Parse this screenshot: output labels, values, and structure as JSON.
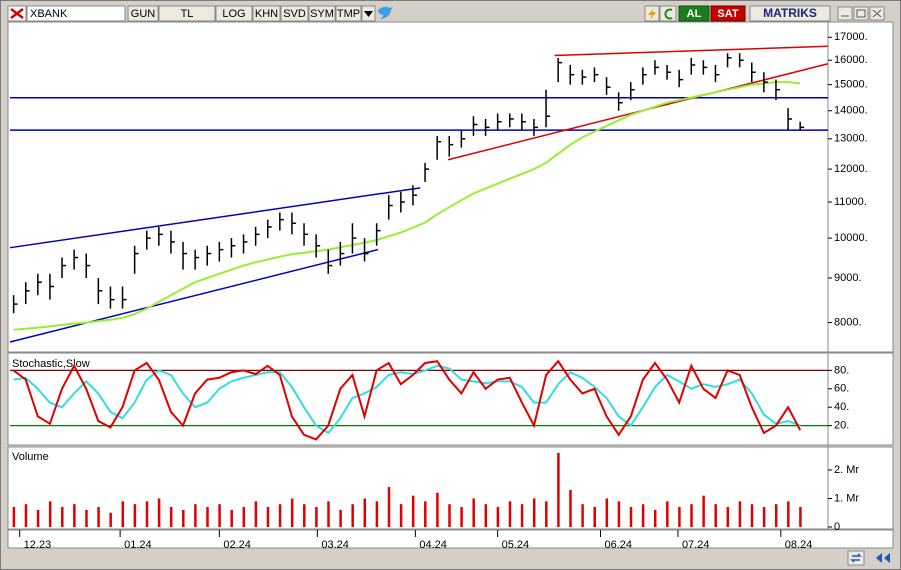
{
  "toolbar": {
    "symbol": "XBANK",
    "buttons": [
      "GUN",
      "TL",
      "LOG",
      "KHN",
      "SVD",
      "SYM",
      "TMP"
    ],
    "buy": "AL",
    "sell": "SAT",
    "brand": "MATRIKS"
  },
  "chart_data": [
    {
      "type": "ohlc",
      "color": "#000000",
      "log_scale": true,
      "x": [
        0,
        1,
        2,
        3,
        4,
        5,
        6,
        7,
        8,
        9,
        10,
        11,
        12,
        13,
        14,
        15,
        16,
        17,
        18,
        19,
        20,
        21,
        22,
        23,
        24,
        25,
        26,
        27,
        28,
        29,
        30,
        31,
        32,
        33,
        34,
        35,
        36,
        37,
        38,
        39,
        40,
        41,
        42,
        43,
        44,
        45,
        46,
        47,
        48,
        49,
        50,
        51,
        52,
        53,
        54,
        55,
        56,
        57,
        58,
        59,
        60,
        61,
        62,
        63,
        64,
        65
      ],
      "high": [
        8600,
        8900,
        9100,
        9100,
        9500,
        9700,
        9600,
        9000,
        8800,
        8800,
        9800,
        10200,
        10300,
        10200,
        9900,
        9700,
        9800,
        9900,
        10000,
        10100,
        10300,
        10500,
        10700,
        10700,
        10400,
        10100,
        9700,
        9900,
        10400,
        10000,
        10400,
        11200,
        11300,
        11500,
        12200,
        13100,
        13100,
        13300,
        13800,
        13700,
        13900,
        13900,
        13900,
        13700,
        14800,
        16100,
        15800,
        15600,
        15700,
        15300,
        14700,
        15100,
        15700,
        16000,
        15800,
        15600,
        16100,
        16000,
        15800,
        16300,
        16300,
        15900,
        15500,
        15200,
        14100,
        13600
      ],
      "low": [
        8200,
        8400,
        8600,
        8500,
        9000,
        9200,
        9000,
        8400,
        8300,
        8300,
        9100,
        9700,
        9800,
        9600,
        9200,
        9200,
        9300,
        9400,
        9500,
        9600,
        9800,
        10000,
        10200,
        10100,
        9800,
        9500,
        9100,
        9300,
        9600,
        9400,
        9800,
        10500,
        10700,
        10900,
        11600,
        12300,
        12400,
        12700,
        13100,
        13100,
        13300,
        13400,
        13300,
        13100,
        13400,
        15100,
        15000,
        15000,
        15100,
        14600,
        14000,
        14400,
        15000,
        15400,
        15200,
        14900,
        15400,
        15400,
        15100,
        15700,
        15700,
        15100,
        14700,
        14400,
        13300,
        13300
      ],
      "close": [
        8400,
        8700,
        8900,
        8800,
        9300,
        9500,
        9300,
        8700,
        8500,
        8500,
        9600,
        10000,
        10100,
        9900,
        9600,
        9500,
        9600,
        9700,
        9800,
        9900,
        10100,
        10300,
        10500,
        10400,
        10100,
        9800,
        9300,
        9600,
        10000,
        9600,
        10200,
        10900,
        11000,
        11200,
        12000,
        12900,
        12800,
        13000,
        13500,
        13400,
        13600,
        13700,
        13600,
        13400,
        13800,
        15900,
        15400,
        15300,
        15400,
        14900,
        14300,
        14800,
        15400,
        15700,
        15500,
        15200,
        15800,
        15700,
        15400,
        16100,
        16000,
        15500,
        15100,
        14800,
        13700,
        13400
      ],
      "ma": {
        "color": "#99ee33",
        "values": [
          7850,
          7870,
          7890,
          7920,
          7950,
          7980,
          8000,
          8030,
          8060,
          8100,
          8180,
          8300,
          8450,
          8600,
          8750,
          8900,
          9000,
          9100,
          9200,
          9300,
          9380,
          9450,
          9520,
          9580,
          9620,
          9660,
          9700,
          9760,
          9820,
          9880,
          9950,
          10050,
          10150,
          10280,
          10420,
          10650,
          10850,
          11050,
          11250,
          11400,
          11550,
          11700,
          11850,
          12000,
          12200,
          12500,
          12800,
          13050,
          13250,
          13450,
          13650,
          13850,
          14000,
          14150,
          14300,
          14400,
          14500,
          14600,
          14700,
          14800,
          14900,
          15000,
          15050,
          15100,
          15100,
          15050
        ]
      },
      "lines": [
        {
          "x": [
            -0.3,
            33.6
          ],
          "y": [
            9750,
            11420
          ],
          "color": "#0000c0"
        },
        {
          "x": [
            -0.3,
            30.1
          ],
          "y": [
            7600,
            9700
          ],
          "color": "#0000c0"
        },
        {
          "x": [
            -0.3,
            67.3
          ],
          "y": [
            14490,
            14490
          ],
          "color": "#0000c0"
        },
        {
          "x": [
            -0.3,
            67.3
          ],
          "y": [
            13300,
            13300
          ],
          "color": "#0000c0"
        },
        {
          "x": [
            35.9,
            67.3
          ],
          "y": [
            12300,
            15850
          ],
          "color": "#e00000"
        },
        {
          "x": [
            44.7,
            67.3
          ],
          "y": [
            16200,
            16600
          ],
          "color": "#e00000"
        }
      ],
      "xlim": [
        -0.3,
        67.3
      ],
      "xticks": [
        {
          "value": 0.5,
          "label": "12.23"
        },
        {
          "value": 8.8,
          "label": "01.24"
        },
        {
          "value": 17.0,
          "label": "02.24"
        },
        {
          "value": 25.1,
          "label": "03.24"
        },
        {
          "value": 33.2,
          "label": "04.24"
        },
        {
          "value": 40.0,
          "label": "05.24"
        },
        {
          "value": 48.5,
          "label": "06.24"
        },
        {
          "value": 54.9,
          "label": "07.24"
        },
        {
          "value": 63.4,
          "label": "08.24"
        }
      ],
      "ylim": [
        7480,
        17700
      ],
      "yticks": [
        {
          "value": 8000,
          "label": "8000."
        },
        {
          "value": 9000,
          "label": "9000."
        },
        {
          "value": 10000,
          "label": "10000."
        },
        {
          "value": 11000,
          "label": "11000."
        },
        {
          "value": 12000,
          "label": "12000."
        },
        {
          "value": 13000,
          "label": "13000."
        },
        {
          "value": 14000,
          "label": "14000."
        },
        {
          "value": 15000,
          "label": "15000."
        },
        {
          "value": 16000,
          "label": "16000."
        },
        {
          "value": 17000,
          "label": "17000."
        }
      ]
    },
    {
      "type": "line",
      "title": "Stochastic,Slow",
      "series": [
        {
          "color": "#e00000",
          "values": [
            80,
            70,
            30,
            22,
            60,
            85,
            60,
            25,
            18,
            40,
            80,
            88,
            70,
            35,
            20,
            55,
            70,
            72,
            78,
            80,
            76,
            85,
            75,
            30,
            10,
            5,
            20,
            60,
            75,
            30,
            80,
            88,
            65,
            75,
            88,
            90,
            70,
            55,
            78,
            60,
            70,
            72,
            45,
            20,
            75,
            90,
            70,
            55,
            60,
            30,
            10,
            30,
            70,
            88,
            70,
            45,
            85,
            60,
            50,
            80,
            75,
            40,
            12,
            20,
            40,
            15
          ]
        },
        {
          "color": "#33dddd",
          "values": [
            70,
            72,
            60,
            45,
            40,
            55,
            68,
            55,
            35,
            28,
            45,
            70,
            80,
            75,
            55,
            40,
            45,
            60,
            68,
            72,
            75,
            78,
            78,
            62,
            40,
            20,
            12,
            28,
            50,
            55,
            62,
            75,
            78,
            76,
            80,
            85,
            82,
            70,
            68,
            66,
            68,
            68,
            62,
            45,
            45,
            65,
            78,
            72,
            62,
            50,
            30,
            20,
            40,
            62,
            75,
            68,
            60,
            65,
            62,
            65,
            70,
            55,
            32,
            22,
            25,
            20
          ]
        }
      ],
      "hlines": [
        {
          "value": 80,
          "color": "#800000"
        },
        {
          "value": 20,
          "color": "#008000"
        }
      ],
      "ylim": [
        0,
        100
      ],
      "yticks": [
        {
          "value": 20,
          "label": "20."
        },
        {
          "value": 40,
          "label": "40."
        },
        {
          "value": 60,
          "label": "60."
        },
        {
          "value": 80,
          "label": "80."
        }
      ]
    },
    {
      "type": "bar",
      "title": "Volume",
      "color": "#e00000",
      "values": [
        0.7,
        0.8,
        0.6,
        0.9,
        0.7,
        0.8,
        0.6,
        0.7,
        0.5,
        0.9,
        0.8,
        0.9,
        1.0,
        0.7,
        0.6,
        0.8,
        0.7,
        0.8,
        0.6,
        0.7,
        0.9,
        0.7,
        0.8,
        1.0,
        0.8,
        0.7,
        0.9,
        0.6,
        0.8,
        1.0,
        0.9,
        1.4,
        0.8,
        1.1,
        0.9,
        1.2,
        0.8,
        0.7,
        1.0,
        0.8,
        0.7,
        0.9,
        0.8,
        1.0,
        0.9,
        2.6,
        1.3,
        0.8,
        0.7,
        1.0,
        0.9,
        0.7,
        0.8,
        0.6,
        0.9,
        0.7,
        0.8,
        1.1,
        0.8,
        0.7,
        0.9,
        0.8,
        0.7,
        0.8,
        0.9,
        0.7
      ],
      "ylim": [
        0,
        2.7
      ],
      "yticks": [
        0,
        {
          "value": 1,
          "label": "1. Mr"
        },
        {
          "value": 2,
          "label": "2. Mr"
        }
      ]
    }
  ]
}
